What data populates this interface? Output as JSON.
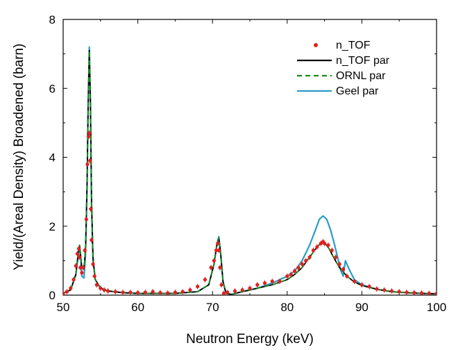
{
  "chart_data": {
    "type": "line",
    "xlabel": "Neutron Energy (keV)",
    "ylabel": "Yield/(Areal Density) Broadened (barn)",
    "xlim": [
      50,
      100
    ],
    "ylim": [
      0,
      8
    ],
    "x_ticks": [
      "50",
      "60",
      "70",
      "80",
      "90",
      "100"
    ],
    "y_ticks": [
      "0",
      "2",
      "4",
      "6",
      "8"
    ],
    "legend_position": "top-right",
    "series": [
      {
        "name": "n_TOF",
        "style": "markers",
        "color": "#e02020",
        "x": [
          50.0,
          50.5,
          51.0,
          51.4,
          51.7,
          51.9,
          52.1,
          52.2,
          52.3,
          52.5,
          52.7,
          52.9,
          53.1,
          53.25,
          53.4,
          53.5,
          53.6,
          53.7,
          53.8,
          54.0,
          54.2,
          54.5,
          55.0,
          55.5,
          56.0,
          57.0,
          58.0,
          59.0,
          60.0,
          61.0,
          62.0,
          63.0,
          64.0,
          65.0,
          66.0,
          67.0,
          68.0,
          69.0,
          69.8,
          70.2,
          70.5,
          70.7,
          70.85,
          71.0,
          71.2,
          71.5,
          72.0,
          73.0,
          74.0,
          75.0,
          76.0,
          77.0,
          78.0,
          79.0,
          80.0,
          80.5,
          81.0,
          81.5,
          82.0,
          82.5,
          83.0,
          83.5,
          84.0,
          84.5,
          84.8,
          85.0,
          85.5,
          86.0,
          86.5,
          87.0,
          87.5,
          88.0,
          89.0,
          90.0,
          91.0,
          92.0,
          93.0,
          94.0,
          95.0,
          96.0,
          97.0,
          98.0,
          99.0,
          100.0
        ],
        "y": [
          0.05,
          0.1,
          0.2,
          0.45,
          0.85,
          1.2,
          1.35,
          1.1,
          0.8,
          0.65,
          0.8,
          1.3,
          2.2,
          3.8,
          4.6,
          4.7,
          3.9,
          2.5,
          1.6,
          0.9,
          0.55,
          0.3,
          0.2,
          0.15,
          0.12,
          0.1,
          0.08,
          0.08,
          0.07,
          0.08,
          0.1,
          0.07,
          0.06,
          0.08,
          0.1,
          0.15,
          0.25,
          0.45,
          0.8,
          1.0,
          1.3,
          1.5,
          1.3,
          0.8,
          0.3,
          0.05,
          0.08,
          0.12,
          0.15,
          0.2,
          0.3,
          0.35,
          0.4,
          0.4,
          0.55,
          0.6,
          0.7,
          0.8,
          0.9,
          1.0,
          1.1,
          1.3,
          1.4,
          1.5,
          1.55,
          1.5,
          1.45,
          1.3,
          1.1,
          0.9,
          0.75,
          0.55,
          0.4,
          0.3,
          0.25,
          0.18,
          0.15,
          0.12,
          0.1,
          0.08,
          0.07,
          0.06,
          0.05,
          0.05
        ]
      },
      {
        "name": "n_TOF par",
        "style": "solid",
        "color": "#000000",
        "x": [
          50.0,
          51.0,
          51.7,
          52.0,
          52.2,
          52.35,
          52.5,
          52.8,
          53.0,
          53.2,
          53.35,
          53.5,
          53.65,
          53.8,
          54.0,
          54.3,
          55.0,
          56.0,
          58.0,
          60.0,
          65.0,
          68.0,
          69.5,
          70.2,
          70.6,
          70.85,
          71.1,
          71.4,
          71.8,
          72.5,
          74.0,
          76.0,
          78.0,
          80.0,
          81.0,
          82.0,
          83.0,
          84.0,
          84.5,
          84.8,
          85.1,
          85.6,
          86.2,
          87.0,
          88.0,
          89.0,
          90.0,
          92.0,
          94.0,
          96.0,
          98.0,
          100.0
        ],
        "y": [
          0.06,
          0.15,
          0.6,
          1.2,
          1.45,
          1.15,
          0.8,
          0.75,
          1.4,
          3.2,
          5.5,
          7.1,
          5.6,
          2.8,
          1.1,
          0.45,
          0.2,
          0.12,
          0.07,
          0.05,
          0.05,
          0.1,
          0.3,
          0.9,
          1.5,
          1.65,
          1.2,
          0.4,
          0.05,
          0.02,
          0.1,
          0.2,
          0.3,
          0.45,
          0.6,
          0.8,
          1.1,
          1.4,
          1.5,
          1.52,
          1.5,
          1.35,
          1.1,
          0.8,
          0.55,
          0.38,
          0.28,
          0.17,
          0.1,
          0.07,
          0.05,
          0.04
        ]
      },
      {
        "name": "ORNL par",
        "style": "dashed",
        "color": "#1a8a1a",
        "x": [
          50.0,
          51.0,
          51.7,
          52.0,
          52.2,
          52.35,
          52.5,
          52.8,
          53.0,
          53.2,
          53.35,
          53.5,
          53.65,
          53.8,
          54.0,
          54.3,
          55.0,
          56.0,
          58.0,
          60.0,
          65.0,
          68.0,
          69.5,
          70.2,
          70.6,
          70.85,
          71.1,
          71.4,
          71.8,
          72.5,
          74.0,
          76.0,
          78.0,
          80.0,
          81.0,
          82.0,
          83.0,
          84.0,
          84.5,
          84.8,
          85.1,
          85.6,
          86.2,
          87.0,
          88.0,
          89.0,
          90.0,
          92.0,
          94.0,
          96.0,
          98.0,
          100.0
        ],
        "y": [
          0.06,
          0.15,
          0.6,
          1.2,
          1.45,
          1.15,
          0.8,
          0.75,
          1.4,
          3.2,
          5.5,
          7.1,
          5.6,
          2.8,
          1.1,
          0.45,
          0.2,
          0.12,
          0.07,
          0.05,
          0.05,
          0.1,
          0.3,
          0.9,
          1.5,
          1.65,
          1.2,
          0.4,
          0.05,
          0.02,
          0.1,
          0.2,
          0.3,
          0.45,
          0.6,
          0.8,
          1.1,
          1.4,
          1.5,
          1.52,
          1.5,
          1.35,
          1.1,
          0.8,
          0.55,
          0.38,
          0.28,
          0.17,
          0.1,
          0.07,
          0.05,
          0.04
        ]
      },
      {
        "name": "Geel par",
        "style": "solid",
        "color": "#2a9bc8",
        "x": [
          50.0,
          51.0,
          51.7,
          52.0,
          52.2,
          52.35,
          52.5,
          52.8,
          53.0,
          53.2,
          53.35,
          53.5,
          53.65,
          53.8,
          54.0,
          54.3,
          55.0,
          56.0,
          58.0,
          60.0,
          65.0,
          68.0,
          69.5,
          70.2,
          70.6,
          70.85,
          71.1,
          71.4,
          71.8,
          72.5,
          74.0,
          76.0,
          78.0,
          80.0,
          81.0,
          82.0,
          83.0,
          83.8,
          84.3,
          84.8,
          85.3,
          85.8,
          86.3,
          86.8,
          87.2,
          87.5,
          87.8,
          88.3,
          89.0,
          90.0,
          92.0,
          94.0,
          96.0,
          98.0,
          100.0
        ],
        "y": [
          0.06,
          0.15,
          0.6,
          1.1,
          1.4,
          1.1,
          0.55,
          0.5,
          1.2,
          3.0,
          5.5,
          7.2,
          5.6,
          2.6,
          1.0,
          0.45,
          0.2,
          0.12,
          0.07,
          0.05,
          0.05,
          0.1,
          0.3,
          0.9,
          1.5,
          1.7,
          1.2,
          0.4,
          0.05,
          0.02,
          0.1,
          0.2,
          0.35,
          0.55,
          0.7,
          1.0,
          1.45,
          1.9,
          2.2,
          2.3,
          2.2,
          1.9,
          1.5,
          1.05,
          0.7,
          0.55,
          1.0,
          0.75,
          0.45,
          0.3,
          0.17,
          0.1,
          0.07,
          0.05,
          0.04
        ]
      }
    ]
  }
}
